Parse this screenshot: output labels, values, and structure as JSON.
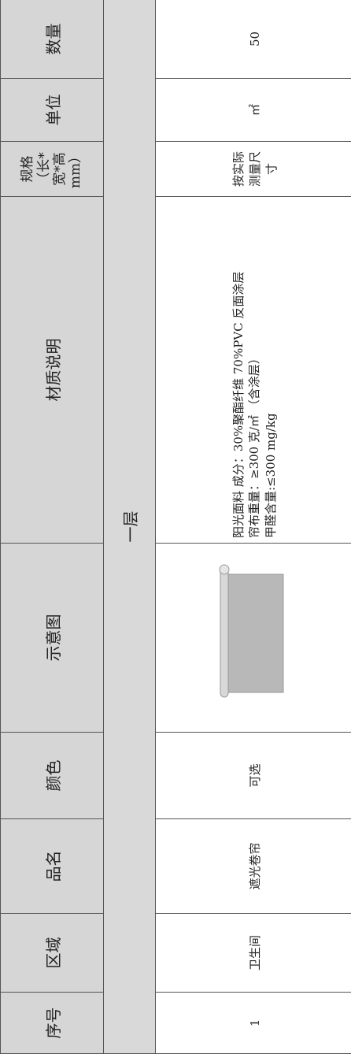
{
  "table": {
    "headers": [
      "序号",
      "区域",
      "品名",
      "颜色",
      "示意图",
      "材质说明",
      "规格（长*宽*高mm）",
      "单位",
      "数量"
    ],
    "section": "一层",
    "rows": [
      [
        "1",
        "卫生间",
        "遮光卷帘",
        "可选",
        "",
        [
          "阳光面料 成分：30%聚酯纤维 70%PVC 反面涂层",
          "帘布重量：≥300 克/㎡ （含涂层）",
          "甲醛含量:≤300 mg/kg"
        ],
        "按实际测量尺寸",
        "㎡",
        "50"
      ]
    ]
  }
}
